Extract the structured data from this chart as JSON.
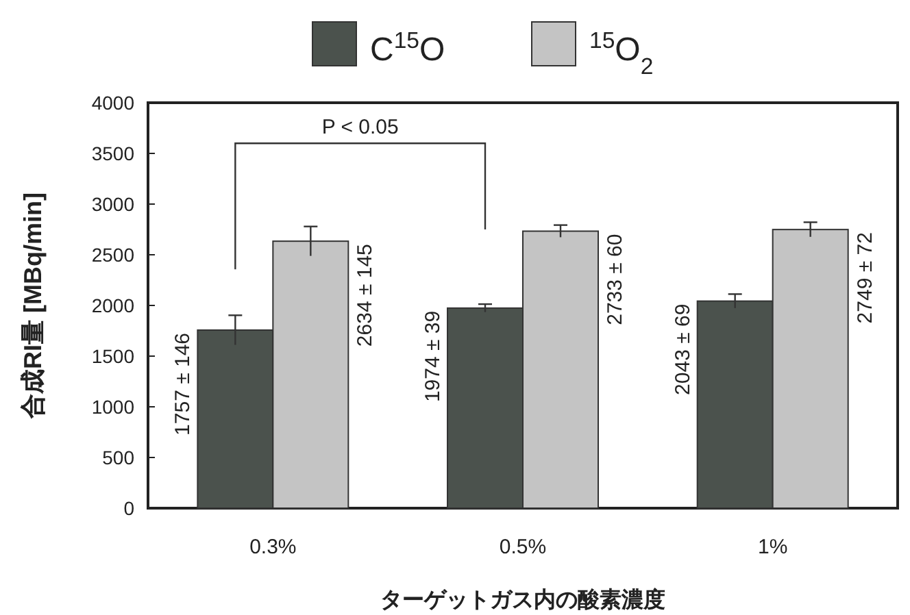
{
  "chart_data": {
    "type": "bar",
    "xlabel": "ターゲットガス内の酸素濃度",
    "ylabel": "合成RI量 [MBq/min]",
    "categories": [
      "0.3%",
      "0.5%",
      "1%"
    ],
    "series": [
      {
        "name": "C$^{15}$O",
        "color": "#4b524d",
        "values": [
          1757,
          1974,
          2043
        ],
        "errors": [
          146,
          39,
          69
        ],
        "value_labels": [
          "1757 ± 146",
          "1974 ± 39",
          "2043 ± 69"
        ]
      },
      {
        "name": "$^{15}$O$_{2}$",
        "color": "#c4c4c4",
        "values": [
          2634,
          2733,
          2749
        ],
        "errors": [
          145,
          60,
          72
        ],
        "value_labels": [
          "2634 ± 145",
          "2733 ± 60",
          "2749 ± 72"
        ]
      }
    ],
    "ylim": [
      0,
      4000
    ],
    "yticks": [
      0,
      500,
      1000,
      1500,
      2000,
      2500,
      3000,
      3500,
      4000
    ],
    "legend": "top",
    "annotations": [
      "P < 0.05"
    ]
  }
}
